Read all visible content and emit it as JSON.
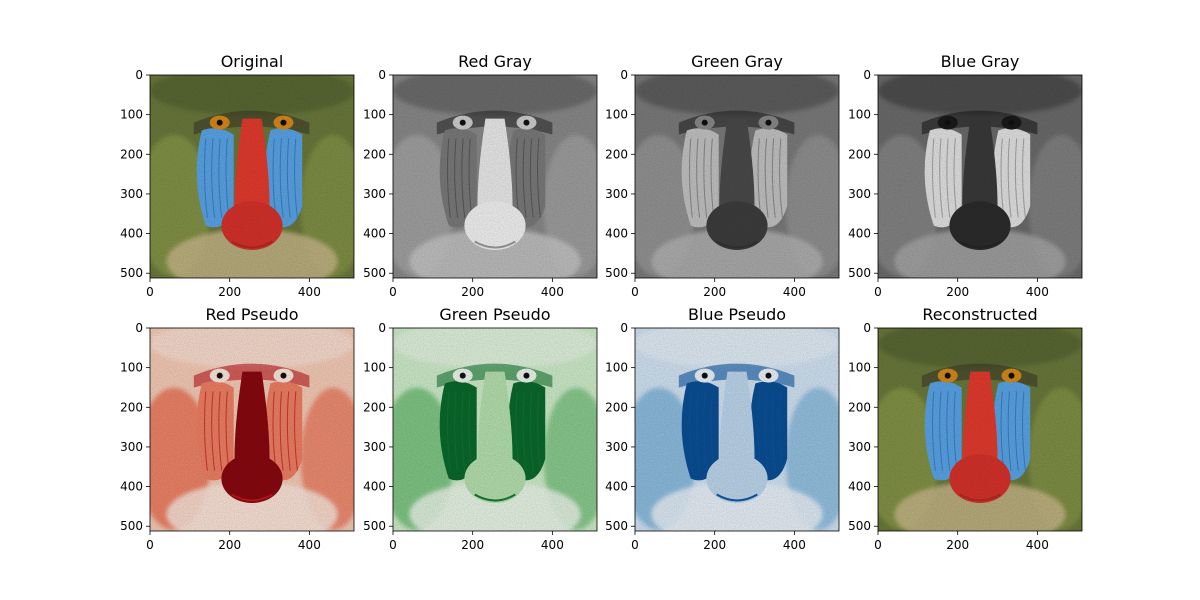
{
  "figure": {
    "axis_x_ticks": [
      "0",
      "200",
      "400"
    ],
    "axis_y_ticks": [
      "0",
      "100",
      "200",
      "300",
      "400",
      "500"
    ],
    "x_tick_values": [
      0,
      200,
      400
    ],
    "y_tick_values": [
      0,
      100,
      200,
      300,
      400,
      500
    ],
    "image_extent": [
      0,
      512
    ],
    "panels": [
      {
        "title": "Original",
        "kind": "color"
      },
      {
        "title": "Red Gray",
        "kind": "gray",
        "variant": "red"
      },
      {
        "title": "Green Gray",
        "kind": "gray",
        "variant": "green"
      },
      {
        "title": "Blue Gray",
        "kind": "gray",
        "variant": "blue"
      },
      {
        "title": "Red Pseudo",
        "kind": "pseudo",
        "color": "#c0151b"
      },
      {
        "title": "Green Pseudo",
        "kind": "pseudo",
        "color": "#157a34"
      },
      {
        "title": "Blue Pseudo",
        "kind": "pseudo",
        "color": "#0d57a6"
      },
      {
        "title": "Reconstructed",
        "kind": "color"
      }
    ]
  }
}
